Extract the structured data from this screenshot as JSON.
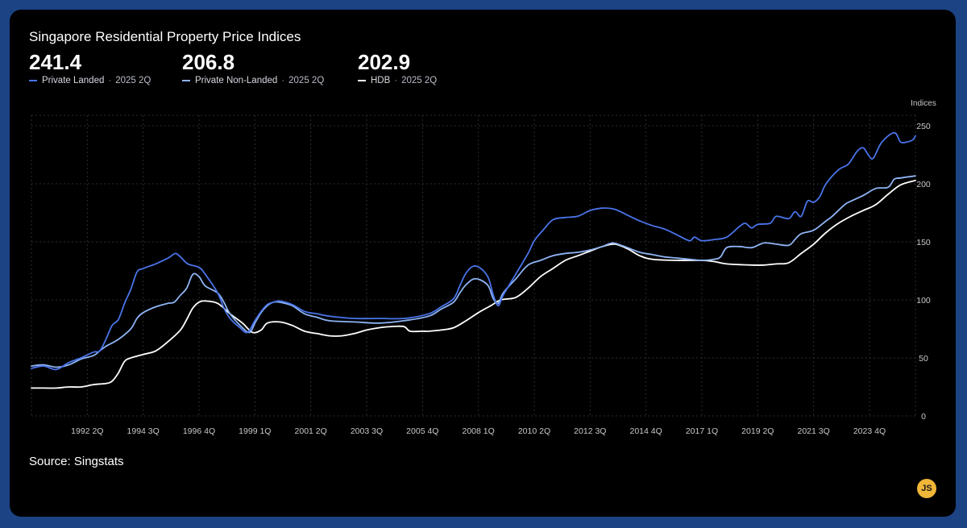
{
  "colors": {
    "background": "#000000",
    "frame": "#1c4384",
    "grid": "#2c2c2c",
    "axis_text": "#c8c8c8"
  },
  "header": {
    "title": "Singapore Residential Property Price Indices"
  },
  "stats": [
    {
      "value": "241.4",
      "label": "Private Landed",
      "period": "2025 2Q",
      "color": "#4a74ea"
    },
    {
      "value": "206.8",
      "label": "Private Non-Landed",
      "period": "2025 2Q",
      "color": "#8eb4f4"
    },
    {
      "value": "202.9",
      "label": "HDB",
      "period": "2025 2Q",
      "color": "#ffffff"
    }
  ],
  "footer": {
    "source": "Source: Singstats",
    "badge": "JS"
  },
  "chart_data": {
    "type": "line",
    "ylabel": "Indices",
    "ylim": [
      0,
      250
    ],
    "yticks": [
      0,
      50,
      100,
      150,
      200,
      250
    ],
    "xlim": [
      1990.0,
      2025.6
    ],
    "xticks": [
      {
        "label": "1992 2Q",
        "x": 1992.25
      },
      {
        "label": "1994 3Q",
        "x": 1994.5
      },
      {
        "label": "1996 4Q",
        "x": 1996.75
      },
      {
        "label": "1999 1Q",
        "x": 1999.0
      },
      {
        "label": "2001 2Q",
        "x": 2001.25
      },
      {
        "label": "2003 3Q",
        "x": 2003.5
      },
      {
        "label": "2005 4Q",
        "x": 2005.75
      },
      {
        "label": "2008 1Q",
        "x": 2008.0
      },
      {
        "label": "2010 2Q",
        "x": 2010.25
      },
      {
        "label": "2012 3Q",
        "x": 2012.5
      },
      {
        "label": "2014 4Q",
        "x": 2014.75
      },
      {
        "label": "2017 1Q",
        "x": 2017.0
      },
      {
        "label": "2019 2Q",
        "x": 2019.25
      },
      {
        "label": "2021 3Q",
        "x": 2021.5
      },
      {
        "label": "2023 4Q",
        "x": 2023.75
      }
    ],
    "grid": true,
    "series": [
      {
        "name": "Private Landed",
        "color": "#4a74ea",
        "points": [
          [
            1990.0,
            41
          ],
          [
            1990.5,
            43
          ],
          [
            1991.0,
            40
          ],
          [
            1991.5,
            46
          ],
          [
            1992.0,
            50
          ],
          [
            1992.5,
            55
          ],
          [
            1992.75,
            56
          ],
          [
            1993.0,
            66
          ],
          [
            1993.25,
            78
          ],
          [
            1993.5,
            83
          ],
          [
            1993.75,
            97
          ],
          [
            1994.0,
            109
          ],
          [
            1994.25,
            124
          ],
          [
            1994.5,
            127
          ],
          [
            1995.0,
            131
          ],
          [
            1995.5,
            136
          ],
          [
            1995.8,
            140
          ],
          [
            1996.0,
            137
          ],
          [
            1996.3,
            131
          ],
          [
            1996.75,
            128
          ],
          [
            1997.0,
            122
          ],
          [
            1997.5,
            106
          ],
          [
            1997.75,
            93
          ],
          [
            1998.0,
            84
          ],
          [
            1998.4,
            76
          ],
          [
            1998.7,
            72
          ],
          [
            1999.0,
            82
          ],
          [
            1999.25,
            90
          ],
          [
            1999.5,
            96
          ],
          [
            1999.75,
            98
          ],
          [
            2000.0,
            99
          ],
          [
            2000.5,
            96
          ],
          [
            2001.0,
            90
          ],
          [
            2001.5,
            88
          ],
          [
            2002.0,
            86
          ],
          [
            2003.0,
            84
          ],
          [
            2004.0,
            84
          ],
          [
            2005.0,
            84
          ],
          [
            2006.0,
            88
          ],
          [
            2006.5,
            94
          ],
          [
            2007.0,
            101
          ],
          [
            2007.25,
            112
          ],
          [
            2007.5,
            123
          ],
          [
            2007.8,
            129
          ],
          [
            2008.1,
            127
          ],
          [
            2008.4,
            119
          ],
          [
            2008.6,
            104
          ],
          [
            2008.8,
            95
          ],
          [
            2009.0,
            104
          ],
          [
            2009.5,
            122
          ],
          [
            2010.0,
            140
          ],
          [
            2010.25,
            151
          ],
          [
            2010.6,
            160
          ],
          [
            2011.0,
            169
          ],
          [
            2011.5,
            171
          ],
          [
            2012.0,
            172
          ],
          [
            2012.5,
            177
          ],
          [
            2013.0,
            179
          ],
          [
            2013.5,
            178
          ],
          [
            2014.0,
            173
          ],
          [
            2014.5,
            168
          ],
          [
            2015.0,
            164
          ],
          [
            2015.5,
            161
          ],
          [
            2016.0,
            156
          ],
          [
            2016.5,
            151
          ],
          [
            2016.7,
            154
          ],
          [
            2017.0,
            151
          ],
          [
            2017.5,
            152
          ],
          [
            2018.0,
            154
          ],
          [
            2018.5,
            163
          ],
          [
            2018.75,
            166
          ],
          [
            2019.0,
            162
          ],
          [
            2019.25,
            165
          ],
          [
            2019.75,
            166
          ],
          [
            2020.0,
            172
          ],
          [
            2020.5,
            170
          ],
          [
            2020.75,
            176
          ],
          [
            2021.0,
            172
          ],
          [
            2021.25,
            185
          ],
          [
            2021.5,
            184
          ],
          [
            2021.75,
            189
          ],
          [
            2022.0,
            200
          ],
          [
            2022.5,
            212
          ],
          [
            2022.9,
            217
          ],
          [
            2023.25,
            228
          ],
          [
            2023.5,
            231
          ],
          [
            2023.7,
            225
          ],
          [
            2023.9,
            222
          ],
          [
            2024.25,
            236
          ],
          [
            2024.75,
            244
          ],
          [
            2025.0,
            236
          ],
          [
            2025.25,
            236
          ],
          [
            2025.5,
            238
          ],
          [
            2025.6,
            241.4
          ]
        ]
      },
      {
        "name": "Private Non-Landed",
        "color": "#8eb4f4",
        "points": [
          [
            1990.0,
            43
          ],
          [
            1990.5,
            44
          ],
          [
            1991.0,
            42
          ],
          [
            1991.5,
            44
          ],
          [
            1992.0,
            49
          ],
          [
            1992.5,
            52
          ],
          [
            1992.75,
            56
          ],
          [
            1993.0,
            60
          ],
          [
            1993.5,
            66
          ],
          [
            1994.0,
            75
          ],
          [
            1994.25,
            84
          ],
          [
            1994.5,
            89
          ],
          [
            1995.0,
            94
          ],
          [
            1995.5,
            97
          ],
          [
            1995.75,
            98
          ],
          [
            1996.0,
            104
          ],
          [
            1996.25,
            110
          ],
          [
            1996.5,
            122
          ],
          [
            1996.75,
            120
          ],
          [
            1997.0,
            112
          ],
          [
            1997.5,
            106
          ],
          [
            1997.75,
            98
          ],
          [
            1998.0,
            88
          ],
          [
            1998.5,
            76
          ],
          [
            1998.8,
            72
          ],
          [
            1999.0,
            80
          ],
          [
            1999.25,
            89
          ],
          [
            1999.5,
            95
          ],
          [
            1999.75,
            98
          ],
          [
            2000.0,
            98
          ],
          [
            2000.5,
            95
          ],
          [
            2001.0,
            88
          ],
          [
            2001.5,
            85
          ],
          [
            2002.0,
            82
          ],
          [
            2003.0,
            81
          ],
          [
            2004.0,
            80
          ],
          [
            2005.0,
            82
          ],
          [
            2006.0,
            86
          ],
          [
            2006.5,
            92
          ],
          [
            2007.0,
            98
          ],
          [
            2007.25,
            106
          ],
          [
            2007.5,
            113
          ],
          [
            2007.8,
            118
          ],
          [
            2008.1,
            117
          ],
          [
            2008.4,
            112
          ],
          [
            2008.6,
            101
          ],
          [
            2008.8,
            97
          ],
          [
            2009.0,
            106
          ],
          [
            2009.5,
            118
          ],
          [
            2010.0,
            130
          ],
          [
            2010.5,
            134
          ],
          [
            2011.0,
            138
          ],
          [
            2011.5,
            140
          ],
          [
            2012.0,
            141
          ],
          [
            2012.5,
            143
          ],
          [
            2013.0,
            146
          ],
          [
            2013.4,
            149
          ],
          [
            2013.75,
            147
          ],
          [
            2014.0,
            145
          ],
          [
            2014.5,
            141
          ],
          [
            2015.0,
            139
          ],
          [
            2015.5,
            137
          ],
          [
            2016.0,
            136
          ],
          [
            2016.5,
            135
          ],
          [
            2017.0,
            134
          ],
          [
            2017.5,
            135
          ],
          [
            2017.75,
            137
          ],
          [
            2018.0,
            145
          ],
          [
            2018.5,
            146
          ],
          [
            2019.0,
            145
          ],
          [
            2019.5,
            149
          ],
          [
            2020.0,
            148
          ],
          [
            2020.5,
            147
          ],
          [
            2020.75,
            152
          ],
          [
            2021.0,
            157
          ],
          [
            2021.5,
            160
          ],
          [
            2022.0,
            168
          ],
          [
            2022.25,
            172
          ],
          [
            2022.75,
            182
          ],
          [
            2023.0,
            185
          ],
          [
            2023.5,
            190
          ],
          [
            2024.0,
            196
          ],
          [
            2024.5,
            197
          ],
          [
            2024.75,
            204
          ],
          [
            2025.0,
            205
          ],
          [
            2025.6,
            206.8
          ]
        ]
      },
      {
        "name": "HDB",
        "color": "#ffffff",
        "points": [
          [
            1990.0,
            24
          ],
          [
            1990.5,
            24
          ],
          [
            1991.0,
            24
          ],
          [
            1991.5,
            25
          ],
          [
            1992.0,
            25
          ],
          [
            1992.5,
            27
          ],
          [
            1993.0,
            28
          ],
          [
            1993.25,
            30
          ],
          [
            1993.5,
            37
          ],
          [
            1993.75,
            47
          ],
          [
            1994.0,
            50
          ],
          [
            1994.5,
            53
          ],
          [
            1995.0,
            56
          ],
          [
            1995.5,
            64
          ],
          [
            1996.0,
            74
          ],
          [
            1996.25,
            83
          ],
          [
            1996.5,
            93
          ],
          [
            1996.75,
            98
          ],
          [
            1997.0,
            99
          ],
          [
            1997.5,
            97
          ],
          [
            1998.0,
            88
          ],
          [
            1998.5,
            80
          ],
          [
            1998.9,
            72
          ],
          [
            1999.25,
            74
          ],
          [
            1999.5,
            80
          ],
          [
            2000.0,
            81
          ],
          [
            2000.5,
            78
          ],
          [
            2001.0,
            73
          ],
          [
            2001.5,
            71
          ],
          [
            2002.0,
            69
          ],
          [
            2002.5,
            69
          ],
          [
            2003.0,
            71
          ],
          [
            2003.5,
            74
          ],
          [
            2004.0,
            76
          ],
          [
            2004.5,
            77
          ],
          [
            2005.0,
            77
          ],
          [
            2005.25,
            73
          ],
          [
            2005.75,
            73
          ],
          [
            2006.0,
            73
          ],
          [
            2006.5,
            74
          ],
          [
            2007.0,
            76
          ],
          [
            2007.5,
            82
          ],
          [
            2008.0,
            89
          ],
          [
            2008.5,
            95
          ],
          [
            2008.9,
            100
          ],
          [
            2009.5,
            102
          ],
          [
            2010.0,
            110
          ],
          [
            2010.5,
            120
          ],
          [
            2011.0,
            127
          ],
          [
            2011.5,
            134
          ],
          [
            2012.0,
            138
          ],
          [
            2012.5,
            142
          ],
          [
            2013.0,
            146
          ],
          [
            2013.5,
            148
          ],
          [
            2014.0,
            144
          ],
          [
            2014.5,
            138
          ],
          [
            2015.0,
            135
          ],
          [
            2016.0,
            134
          ],
          [
            2017.0,
            134
          ],
          [
            2017.5,
            133
          ],
          [
            2018.0,
            131
          ],
          [
            2019.0,
            130
          ],
          [
            2019.5,
            130
          ],
          [
            2020.0,
            131
          ],
          [
            2020.5,
            132
          ],
          [
            2021.0,
            140
          ],
          [
            2021.5,
            148
          ],
          [
            2022.0,
            158
          ],
          [
            2022.5,
            166
          ],
          [
            2023.0,
            172
          ],
          [
            2023.5,
            177
          ],
          [
            2024.0,
            182
          ],
          [
            2024.5,
            191
          ],
          [
            2025.0,
            199
          ],
          [
            2025.6,
            202.9
          ]
        ]
      }
    ]
  }
}
